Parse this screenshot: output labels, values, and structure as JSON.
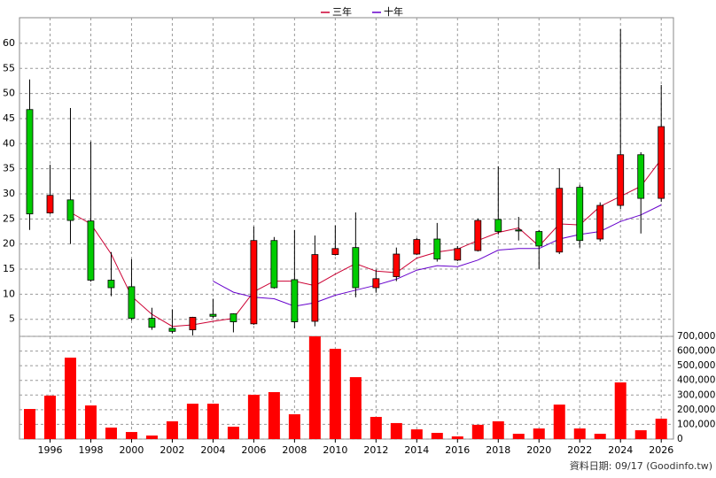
{
  "chart_data": [
    {
      "type": "candlestick",
      "x": [
        1995,
        1996,
        1997,
        1998,
        1999,
        2000,
        2001,
        2002,
        2003,
        2004,
        2005,
        2006,
        2007,
        2008,
        2009,
        2010,
        2011,
        2012,
        2013,
        2014,
        2015,
        2016,
        2017,
        2018,
        2019,
        2020,
        2021,
        2022,
        2023,
        2024,
        2025,
        2026
      ],
      "open": [
        46.8,
        26.2,
        28.8,
        24.6,
        12.8,
        11.5,
        5.2,
        3.2,
        2.9,
        6.0,
        6.1,
        4.1,
        20.7,
        12.9,
        4.6,
        17.9,
        19.3,
        11.3,
        13.5,
        18.0,
        21.0,
        16.8,
        18.7,
        24.9,
        22.8,
        22.5,
        18.4,
        31.3,
        21.0,
        27.7,
        37.8,
        29.1
      ],
      "high": [
        52.8,
        35.8,
        47.1,
        40.4,
        18.4,
        17.0,
        7.3,
        7.0,
        5.5,
        9.1,
        6.2,
        23.5,
        21.4,
        22.8,
        21.7,
        23.7,
        26.3,
        14.9,
        19.3,
        21.2,
        24.2,
        19.6,
        25.1,
        35.5,
        25.4,
        22.8,
        35.1,
        31.8,
        28.3,
        62.8,
        38.3,
        51.7
      ],
      "low": [
        22.8,
        26.0,
        20.0,
        12.5,
        9.6,
        4.8,
        2.9,
        2.2,
        1.8,
        5.2,
        2.4,
        3.9,
        11.1,
        3.2,
        3.6,
        17.7,
        9.4,
        10.3,
        12.6,
        17.8,
        16.5,
        16.6,
        18.5,
        21.9,
        20.7,
        15.0,
        18.0,
        19.3,
        20.5,
        27.0,
        22.1,
        28.4
      ],
      "close": [
        26.0,
        29.7,
        24.7,
        12.8,
        11.3,
        5.2,
        3.4,
        2.6,
        5.4,
        5.6,
        4.5,
        20.7,
        11.3,
        4.5,
        17.9,
        19.1,
        11.3,
        13.1,
        18.0,
        20.9,
        17.0,
        19.1,
        24.7,
        22.5,
        22.6,
        19.6,
        31.1,
        20.7,
        27.7,
        37.8,
        29.1,
        43.4
      ],
      "up_color": "#ff0000",
      "down_color": "#00cc00",
      "series": [
        {
          "name": "三年",
          "color": "#cc0033",
          "values": [
            null,
            null,
            26.3,
            24.0,
            18.0,
            9.6,
            6.0,
            3.6,
            3.9,
            4.6,
            5.2,
            10.5,
            12.6,
            12.6,
            11.7,
            14.0,
            16.1,
            14.6,
            14.3,
            17.2,
            18.4,
            19.0,
            20.7,
            22.3,
            23.2,
            19.6,
            24.0,
            23.8,
            27.5,
            29.5,
            31.5,
            36.9
          ]
        },
        {
          "name": "十年",
          "color": "#6600cc",
          "values": [
            null,
            null,
            null,
            null,
            null,
            null,
            null,
            null,
            null,
            12.6,
            10.4,
            9.4,
            9.1,
            7.6,
            8.3,
            9.8,
            10.8,
            11.8,
            13.0,
            14.8,
            15.7,
            15.5,
            16.8,
            18.8,
            19.1,
            19.1,
            21.0,
            21.9,
            22.5,
            24.5,
            25.8,
            27.8
          ]
        }
      ],
      "xlim": [
        1994.5,
        2026.6
      ],
      "ylim": [
        1.6,
        65.1
      ],
      "yticks": [
        5,
        10,
        15,
        20,
        25,
        30,
        35,
        40,
        45,
        50,
        55,
        60
      ],
      "grid": true,
      "legend": "top"
    },
    {
      "type": "bar",
      "x": [
        1995,
        1996,
        1997,
        1998,
        1999,
        2000,
        2001,
        2002,
        2003,
        2004,
        2005,
        2006,
        2007,
        2008,
        2009,
        2010,
        2011,
        2012,
        2013,
        2014,
        2015,
        2016,
        2017,
        2018,
        2019,
        2020,
        2021,
        2022,
        2023,
        2024,
        2025,
        2026
      ],
      "values": [
        205000,
        296000,
        555000,
        229000,
        78000,
        48000,
        24000,
        121000,
        241000,
        241000,
        84000,
        302000,
        320000,
        169000,
        700000,
        615000,
        422000,
        151000,
        109000,
        66000,
        42000,
        18000,
        97000,
        121000,
        36000,
        72000,
        235000,
        72000,
        36000,
        386000,
        60000,
        139000
      ],
      "color": "#ff0000",
      "xlim": [
        1994.5,
        2026.6
      ],
      "xticks": [
        1996,
        1998,
        2000,
        2002,
        2004,
        2006,
        2008,
        2010,
        2012,
        2014,
        2016,
        2018,
        2020,
        2022,
        2024,
        2026
      ],
      "ylim": [
        0,
        700000
      ],
      "yticks": [
        0,
        {
          "value": 100000,
          "label": "100,000"
        },
        {
          "value": 200000,
          "label": "200,000"
        },
        {
          "value": 300000,
          "label": "300,000"
        },
        {
          "value": 400000,
          "label": "400,000"
        },
        {
          "value": 500000,
          "label": "500,000"
        },
        {
          "value": 600000,
          "label": "600,000"
        },
        {
          "value": 700000,
          "label": "700,000"
        }
      ],
      "grid": true
    }
  ],
  "footer": "資料日期: 09/17  (Goodinfo.tw)"
}
